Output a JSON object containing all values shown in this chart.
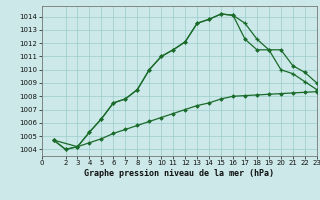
{
  "xlabel": "Graphe pression niveau de la mer (hPa)",
  "bg_color": "#cce8e8",
  "grid_color": "#99cccc",
  "line_color": "#1a6b2a",
  "ylim": [
    1003.5,
    1014.8
  ],
  "xlim": [
    0,
    23
  ],
  "yticks": [
    1004,
    1005,
    1006,
    1007,
    1008,
    1009,
    1010,
    1011,
    1012,
    1013,
    1014
  ],
  "xticks": [
    0,
    2,
    3,
    4,
    5,
    6,
    7,
    8,
    9,
    10,
    11,
    12,
    13,
    14,
    15,
    16,
    17,
    18,
    19,
    20,
    21,
    22,
    23
  ],
  "line1_x": [
    1,
    2,
    3,
    4,
    5,
    6,
    7,
    8,
    9,
    10,
    11,
    12,
    13,
    14,
    15,
    16,
    17,
    18,
    19,
    20,
    21,
    22,
    23
  ],
  "line1_y": [
    1004.7,
    1004.0,
    1004.2,
    1005.3,
    1006.3,
    1007.5,
    1007.8,
    1008.5,
    1010.0,
    1011.0,
    1011.5,
    1012.1,
    1013.5,
    1013.8,
    1014.2,
    1014.1,
    1013.5,
    1012.3,
    1011.5,
    1010.0,
    1009.7,
    1009.1,
    1008.5
  ],
  "line2_x": [
    1,
    3,
    4,
    5,
    6,
    7,
    8,
    9,
    10,
    11,
    12,
    13,
    14,
    15,
    16,
    17,
    18,
    19,
    20,
    21,
    22,
    23
  ],
  "line2_y": [
    1004.7,
    1004.2,
    1005.3,
    1006.3,
    1007.5,
    1007.8,
    1008.5,
    1010.0,
    1011.0,
    1011.5,
    1012.1,
    1013.5,
    1013.8,
    1014.2,
    1014.1,
    1012.3,
    1011.5,
    1011.5,
    1011.5,
    1010.3,
    1009.8,
    1009.0
  ],
  "line3_x": [
    1,
    2,
    3,
    4,
    5,
    6,
    7,
    8,
    9,
    10,
    11,
    12,
    13,
    14,
    15,
    16,
    17,
    18,
    19,
    20,
    21,
    22,
    23
  ],
  "line3_y": [
    1004.7,
    1004.0,
    1004.2,
    1004.5,
    1004.8,
    1005.2,
    1005.5,
    1005.8,
    1006.1,
    1006.4,
    1006.7,
    1007.0,
    1007.3,
    1007.5,
    1007.8,
    1008.0,
    1008.05,
    1008.1,
    1008.15,
    1008.2,
    1008.25,
    1008.3,
    1008.35
  ]
}
